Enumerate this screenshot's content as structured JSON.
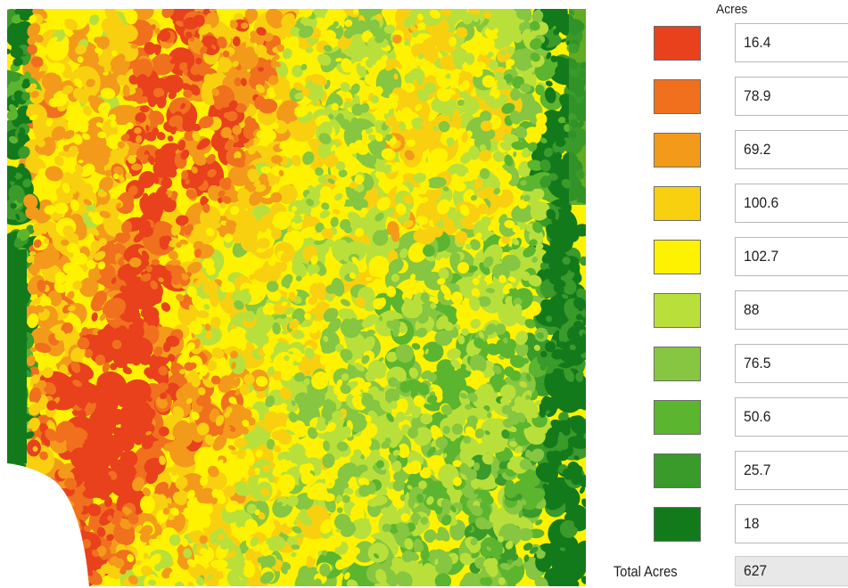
{
  "legend": {
    "heading": "Acres",
    "classes": [
      {
        "value": "16.4",
        "color": "#e8411c"
      },
      {
        "value": "78.9",
        "color": "#f0701e"
      },
      {
        "value": "69.2",
        "color": "#f49a1a"
      },
      {
        "value": "100.6",
        "color": "#f8d010"
      },
      {
        "value": "102.7",
        "color": "#fff200"
      },
      {
        "value": "88",
        "color": "#b9e03a"
      },
      {
        "value": "76.5",
        "color": "#86c640"
      },
      {
        "value": "50.6",
        "color": "#5cb52e"
      },
      {
        "value": "25.7",
        "color": "#3a9a2a"
      },
      {
        "value": "18",
        "color": "#137a1c"
      }
    ],
    "total_label": "Total Acres",
    "total_value": "627"
  }
}
